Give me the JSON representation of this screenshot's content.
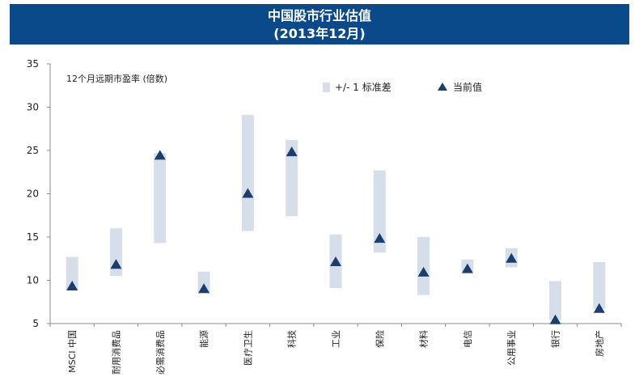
{
  "title": {
    "line1": "中国股市行业估值",
    "line2": "(2013年12月)"
  },
  "chart_data": {
    "type": "range-marker",
    "ylabel": "12个月远期市盈率 (倍数)",
    "ylim": [
      5,
      35
    ],
    "yticks": [
      5,
      10,
      15,
      20,
      25,
      30,
      35
    ],
    "legend": {
      "range_label": "+/- 1 标准差",
      "marker_label": "当前值",
      "placement": "top-right"
    },
    "colors": {
      "range": "#d6dee9",
      "marker": "#1a3f6e",
      "axis": "#888888",
      "title_bg": "#0b4a8a"
    },
    "categories": [
      "MSCI 中国",
      "耐用消费品",
      "必需消费品",
      "能源",
      "医疗卫生",
      "科技",
      "工业",
      "保险",
      "材料",
      "电信",
      "公用事业",
      "银行",
      "房地产"
    ],
    "series": [
      {
        "name": "+/- 1 标准差",
        "low": [
          8.8,
          10.5,
          14.3,
          8.5,
          15.7,
          17.4,
          9.1,
          13.2,
          8.3,
          11.0,
          11.5,
          5.4,
          6.7
        ],
        "high": [
          12.7,
          16.0,
          24.7,
          11.0,
          29.1,
          26.2,
          15.3,
          22.7,
          15.0,
          12.4,
          13.7,
          9.9,
          12.1
        ]
      },
      {
        "name": "当前值",
        "values": [
          9.3,
          11.8,
          24.4,
          9.0,
          20.0,
          24.8,
          12.1,
          14.8,
          10.9,
          11.3,
          12.5,
          5.4,
          6.7
        ]
      }
    ]
  }
}
